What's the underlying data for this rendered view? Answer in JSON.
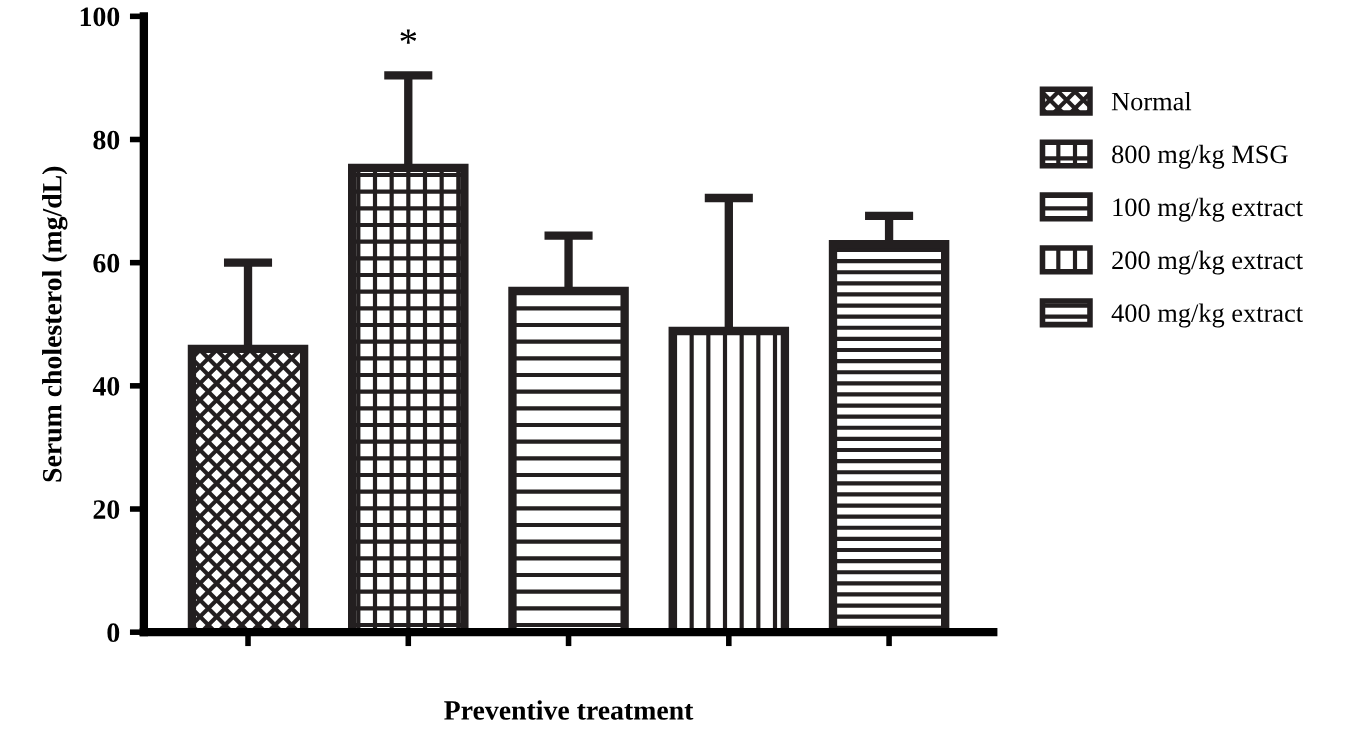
{
  "chart_data": {
    "type": "bar",
    "xlabel": "Preventive treatment",
    "ylabel": "Serum cholesterol (mg/dL)",
    "categories": [
      null,
      null,
      null,
      null,
      null
    ],
    "series": [
      {
        "name": "Normal",
        "color": "#231f20",
        "values": [
          46,
          null,
          null,
          null,
          null
        ],
        "errors": [
          14,
          null,
          null,
          null,
          null
        ]
      },
      {
        "name": "800 mg/kg MSG",
        "color": "#231f20",
        "values": [
          null,
          75.4,
          null,
          null,
          null
        ],
        "errors": [
          null,
          15,
          null,
          null,
          null
        ]
      },
      {
        "name": "100 mg/kg extract",
        "color": "#231f20",
        "values": [
          null,
          null,
          55.4,
          null,
          null
        ],
        "errors": [
          null,
          null,
          9,
          null,
          null
        ]
      },
      {
        "name": "200 mg/kg extract",
        "color": "#231f20",
        "values": [
          null,
          null,
          null,
          48.9,
          null
        ],
        "errors": [
          null,
          null,
          null,
          21.6,
          null
        ]
      },
      {
        "name": "400 mg/kg extract",
        "color": "#231f20",
        "values": [
          null,
          null,
          null,
          null,
          63
        ],
        "errors": [
          null,
          null,
          null,
          null,
          4.6
        ]
      }
    ],
    "annotations": [
      "*"
    ],
    "ylim": [
      0,
      100
    ],
    "yticks": [
      0,
      20,
      40,
      60,
      80,
      100
    ],
    "grid": false,
    "legend": "top right"
  }
}
